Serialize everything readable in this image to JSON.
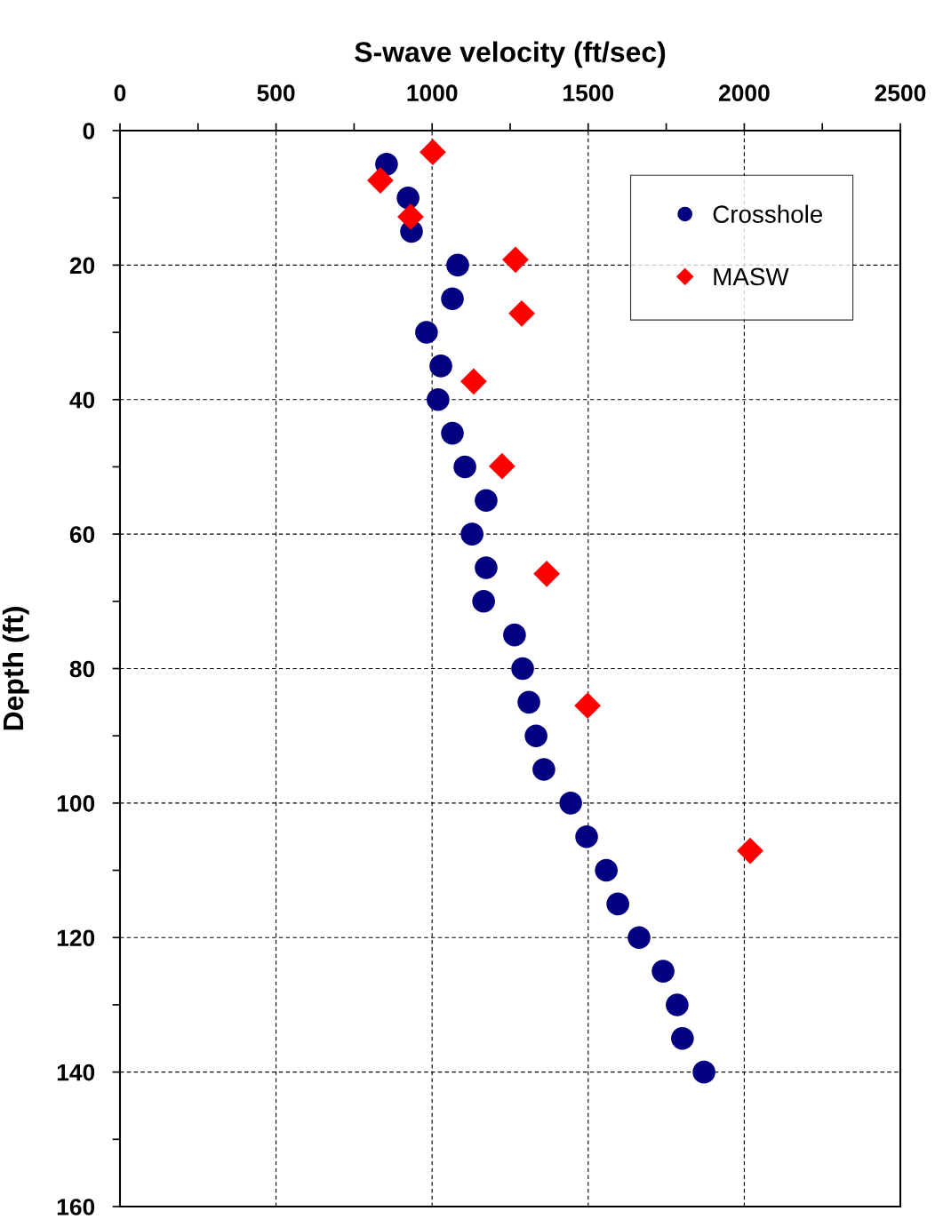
{
  "chart_data": {
    "type": "scatter",
    "xlabel": "S-wave velocity (ft/sec)",
    "ylabel": "Depth (ft)",
    "xlim": [
      0,
      2500
    ],
    "xticks": [
      0,
      500,
      1000,
      1500,
      2000,
      2500
    ],
    "ylim": [
      160,
      0
    ],
    "yticks": [
      0,
      20,
      40,
      60,
      80,
      100,
      120,
      140,
      160
    ],
    "grid": true,
    "legend": "top right",
    "series": [
      {
        "name": "Crosshole",
        "color": "#000080",
        "marker": "circle",
        "x": [
          854,
          923,
          934,
          1082,
          1065,
          982,
          1028,
          1019,
          1065,
          1105,
          1173,
          1128,
          1173,
          1165,
          1264,
          1290,
          1310,
          1333,
          1358,
          1444,
          1495,
          1558,
          1595,
          1663,
          1740,
          1785,
          1802,
          1871
        ],
        "values": [
          5,
          10,
          15,
          20,
          25,
          30,
          35,
          40,
          45,
          50,
          55,
          60,
          65,
          70,
          75,
          80,
          85,
          90,
          95,
          100,
          105,
          110,
          115,
          120,
          125,
          130,
          135,
          140
        ]
      },
      {
        "name": "MASW",
        "color": "#ff0000",
        "marker": "diamond",
        "x": [
          1002,
          834,
          931,
          1267,
          1287,
          1133,
          1224,
          1367,
          1498,
          2019
        ],
        "values": [
          3.2,
          7.4,
          12.8,
          19.2,
          27.2,
          37.3,
          49.9,
          65.9,
          85.5,
          107.1
        ]
      }
    ]
  }
}
